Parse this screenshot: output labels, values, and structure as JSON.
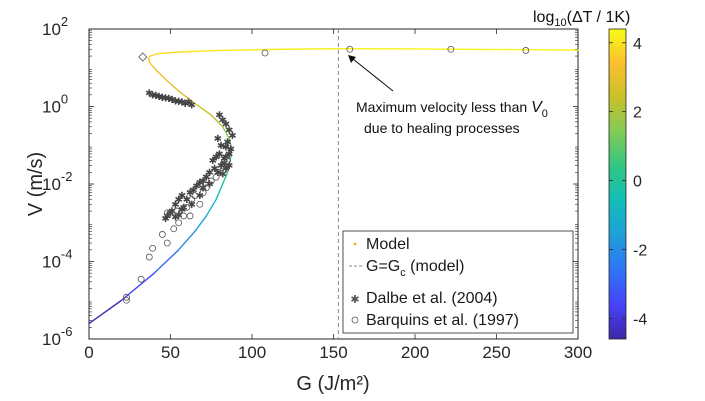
{
  "chart_data": {
    "type": "scatter",
    "xlabel": "G (J/m²)",
    "ylabel": "V (m/s)",
    "xlim": [
      0,
      300
    ],
    "ylim": [
      1e-06,
      100
    ],
    "yscale": "log",
    "x_ticks": [
      "0",
      "50",
      "100",
      "150",
      "200",
      "250",
      "300"
    ],
    "y_ticks": [
      {
        "base": "10",
        "exp": "2"
      },
      {
        "base": "10",
        "exp": "0"
      },
      {
        "base": "10",
        "exp": "-2"
      },
      {
        "base": "10",
        "exp": "-4"
      },
      {
        "base": "10",
        "exp": "-6"
      }
    ],
    "grid": false,
    "legend_position": "bottom-right",
    "colorbar": {
      "title_parts": [
        "log",
        "10",
        "(ΔT / 1K)"
      ],
      "range": [
        -4.6,
        4.4
      ],
      "ticks": [
        "4",
        "2",
        "0",
        "-2",
        "-4"
      ],
      "colors": [
        "#3e26a8",
        "#4743f8",
        "#2f74f7",
        "#1f9ed8",
        "#12bdb9",
        "#30c683",
        "#80cb58",
        "#c8c129",
        "#fbbf2f",
        "#f9fb15"
      ]
    },
    "series": [
      {
        "name": "Model",
        "kind": "curve",
        "x": [
          0,
          20,
          40,
          55,
          65,
          72,
          78,
          82,
          85,
          87,
          87.5,
          86,
          82,
          75,
          65,
          55,
          47,
          42,
          39,
          37,
          36.5,
          37.5,
          42,
          55,
          80,
          120,
          155,
          200,
          250,
          280,
          300
        ],
        "y": [
          2.5e-06,
          1e-05,
          5e-05,
          0.0002,
          0.0006,
          0.0015,
          0.004,
          0.01,
          0.02,
          0.05,
          0.08,
          0.15,
          0.3,
          0.6,
          1.2,
          2.5,
          5,
          8,
          11,
          14,
          17,
          20,
          23,
          25.5,
          28,
          30,
          31,
          30.5,
          29.5,
          29,
          28.5
        ],
        "color_values": [
          -4.4,
          -3.6,
          -2.8,
          -2.0,
          -1.4,
          -0.9,
          -0.4,
          0.0,
          0.4,
          0.8,
          1.2,
          1.6,
          2.1,
          2.5,
          2.8,
          3.0,
          3.2,
          3.35,
          3.5,
          3.6,
          3.7,
          3.8,
          3.9,
          4.0,
          4.1,
          4.2,
          4.25,
          4.3,
          4.3,
          4.3,
          4.3
        ]
      },
      {
        "name": "G=G",
        "name_subscript": "c",
        "name_suffix": " (model)",
        "kind": "vline",
        "x": 153
      },
      {
        "name": "Dalbe et al. (2004)",
        "kind": "scatter",
        "marker": "asterisk",
        "x": [
          37,
          39,
          41,
          43,
          45,
          47,
          49,
          51,
          53,
          55,
          57,
          59,
          61,
          63,
          80,
          84,
          86,
          82,
          88,
          85,
          79,
          81,
          84,
          87,
          86,
          84,
          83,
          80,
          78,
          76,
          83,
          86,
          84,
          81,
          79,
          82,
          77,
          74,
          72,
          70,
          74,
          68,
          66,
          70,
          64,
          62,
          68,
          60,
          57,
          63,
          55,
          58,
          53,
          51,
          57,
          50,
          48,
          55,
          47,
          53
        ],
        "y": [
          2.2,
          2.0,
          1.9,
          1.8,
          1.7,
          1.65,
          1.6,
          1.5,
          1.4,
          1.35,
          1.3,
          1.2,
          1.3,
          1.1,
          0.6,
          0.35,
          0.25,
          0.45,
          0.18,
          0.12,
          0.15,
          0.1,
          0.09,
          0.08,
          0.06,
          0.05,
          0.045,
          0.06,
          0.05,
          0.04,
          0.035,
          0.03,
          0.025,
          0.03,
          0.02,
          0.018,
          0.025,
          0.02,
          0.015,
          0.012,
          0.01,
          0.011,
          0.009,
          0.008,
          0.007,
          0.006,
          0.005,
          0.004,
          0.005,
          0.003,
          0.004,
          0.0025,
          0.003,
          0.002,
          0.0022,
          0.0018,
          0.0015,
          0.0016,
          0.0013,
          0.0014
        ]
      },
      {
        "name": "Barquins et al. (1997)",
        "kind": "scatter",
        "marker": "circle",
        "x": [
          23,
          23,
          32,
          37,
          39,
          45,
          48,
          55,
          58,
          52,
          48,
          60,
          63,
          65,
          68,
          72,
          75,
          78,
          80,
          82,
          85,
          62,
          70,
          54,
          108,
          160,
          222,
          268
        ],
        "y": [
          1.2e-05,
          1e-05,
          3.5e-05,
          0.00013,
          0.00022,
          0.0005,
          0.0003,
          0.001,
          0.0015,
          0.0007,
          0.0018,
          0.0025,
          0.004,
          0.005,
          0.003,
          0.008,
          0.012,
          0.015,
          0.02,
          0.03,
          0.04,
          0.0015,
          0.006,
          0.002,
          24,
          30,
          30,
          28
        ]
      },
      {
        "name": "",
        "kind": "scatter",
        "marker": "diamond",
        "x": [
          33
        ],
        "y": [
          19
        ]
      }
    ],
    "annotations": [
      {
        "line1": "Maximum velocity less than ",
        "line1_var": "V",
        "line1_sub": "0",
        "line2": "due to healing processes",
        "arrow_to": [
          160,
          23
        ]
      }
    ]
  }
}
